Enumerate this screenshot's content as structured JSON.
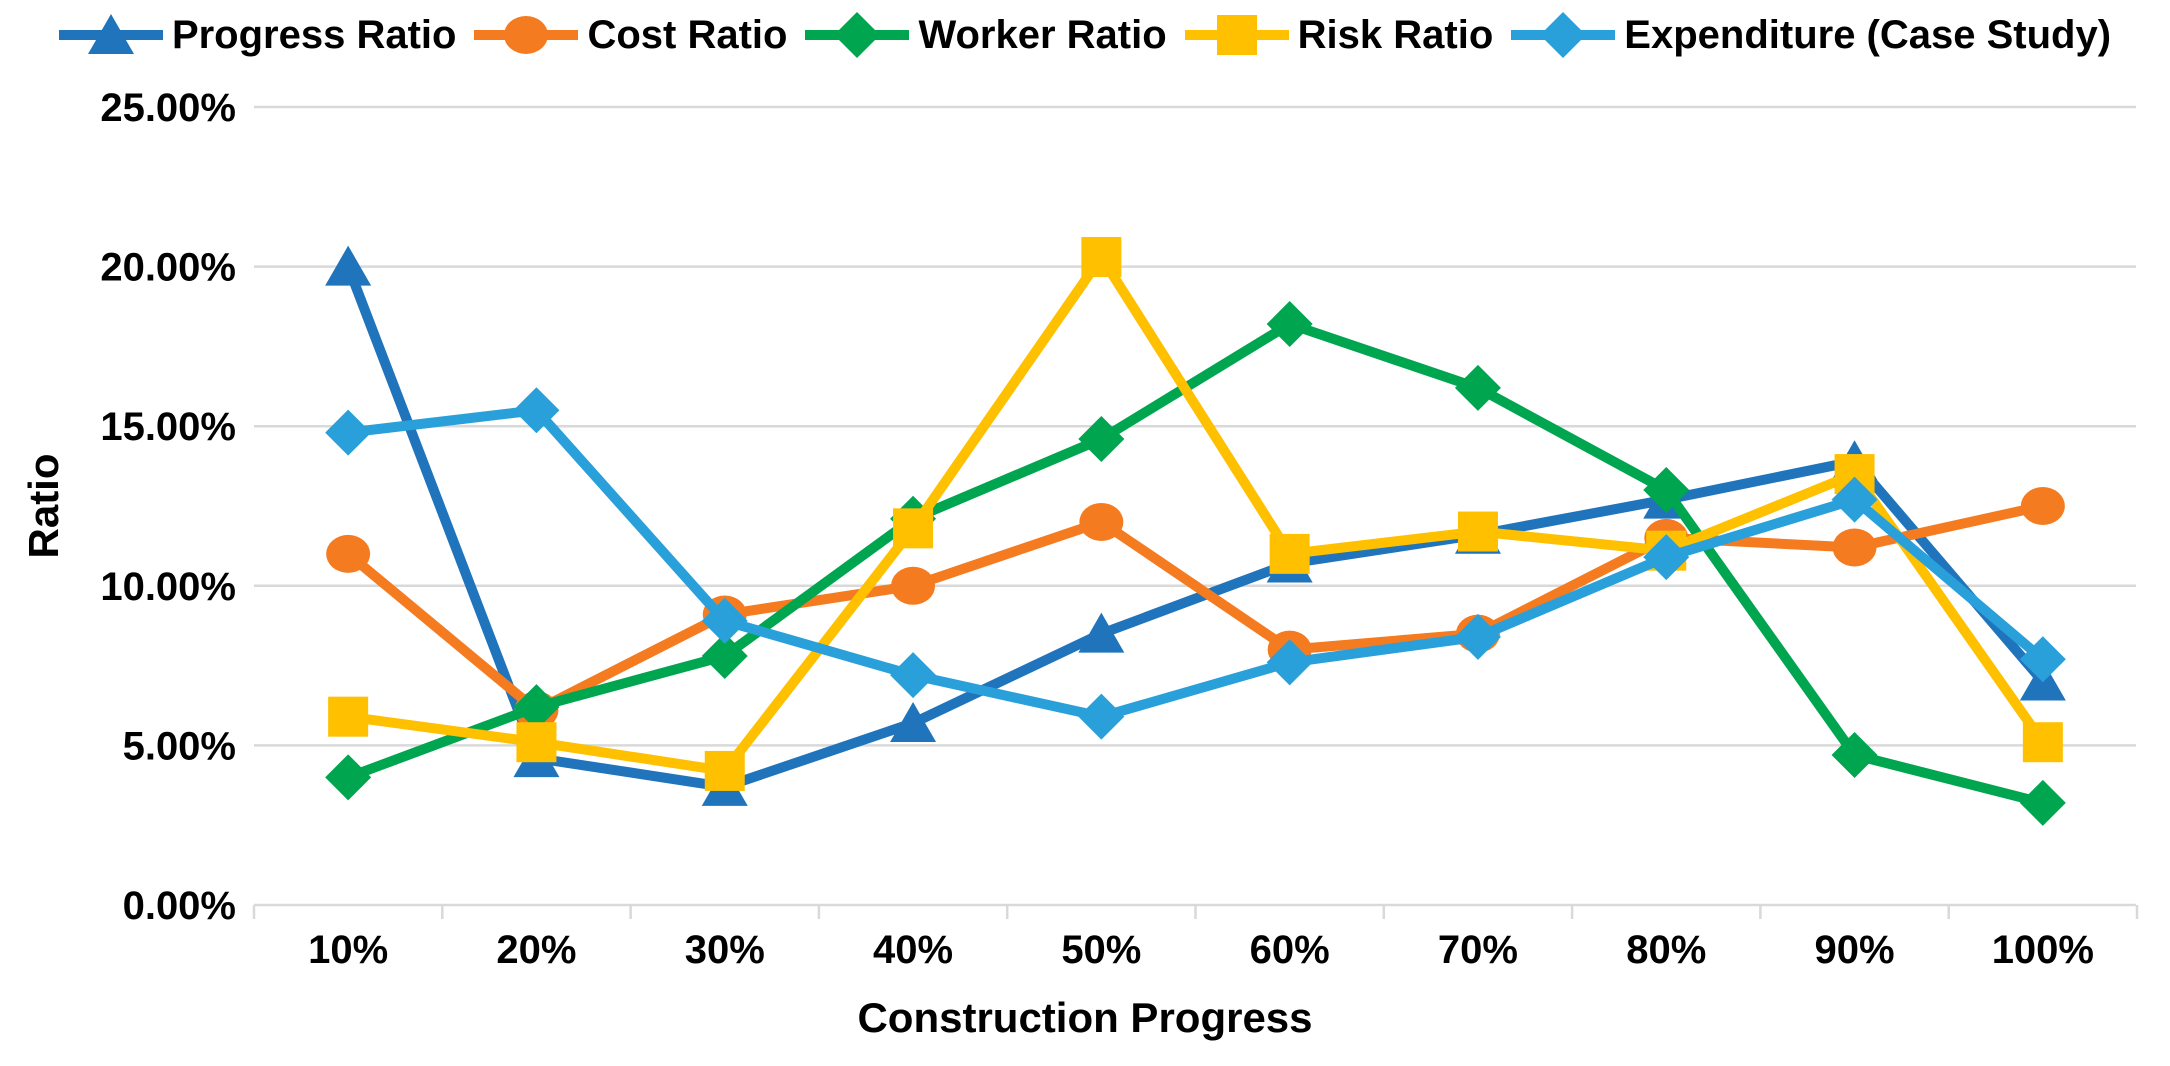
{
  "chart_data": {
    "type": "line",
    "title": "",
    "xlabel": "Construction Progress",
    "ylabel": "Ratio",
    "categories": [
      "10%",
      "20%",
      "30%",
      "40%",
      "50%",
      "60%",
      "70%",
      "80%",
      "90%",
      "100%"
    ],
    "ylim": [
      0,
      25
    ],
    "ytick_step": 5,
    "ytick_labels": [
      "0.00%",
      "5.00%",
      "10.00%",
      "15.00%",
      "20.00%",
      "25.00%"
    ],
    "grid": true,
    "legend_position": "top",
    "grid_color": "#D9D9D9",
    "text_color": "#000000",
    "background": "#FFFFFF",
    "series": [
      {
        "name": "Progress Ratio",
        "marker": "triangle",
        "color": "#1F74BC",
        "values": [
          20.0,
          4.6,
          3.7,
          5.7,
          8.5,
          10.7,
          11.6,
          12.7,
          13.9,
          7.0
        ]
      },
      {
        "name": "Cost Ratio",
        "marker": "circle",
        "color": "#F57B20",
        "values": [
          11.0,
          6.1,
          9.1,
          10.0,
          12.0,
          8.0,
          8.5,
          11.5,
          11.2,
          12.5
        ]
      },
      {
        "name": "Worker Ratio",
        "marker": "diamond",
        "color": "#00A54F",
        "values": [
          4.0,
          6.2,
          7.8,
          12.1,
          14.6,
          18.2,
          16.2,
          13.0,
          4.7,
          3.2
        ]
      },
      {
        "name": "Risk Ratio",
        "marker": "square",
        "color": "#FFC000",
        "values": [
          5.9,
          5.1,
          4.2,
          11.8,
          20.3,
          11.0,
          11.7,
          11.1,
          13.5,
          5.1
        ]
      },
      {
        "name": "Expenditure (Case Study)",
        "marker": "diamond",
        "color": "#29A0DA",
        "values": [
          14.8,
          15.5,
          8.9,
          7.2,
          5.9,
          7.6,
          8.4,
          10.9,
          12.7,
          7.7
        ]
      }
    ]
  }
}
